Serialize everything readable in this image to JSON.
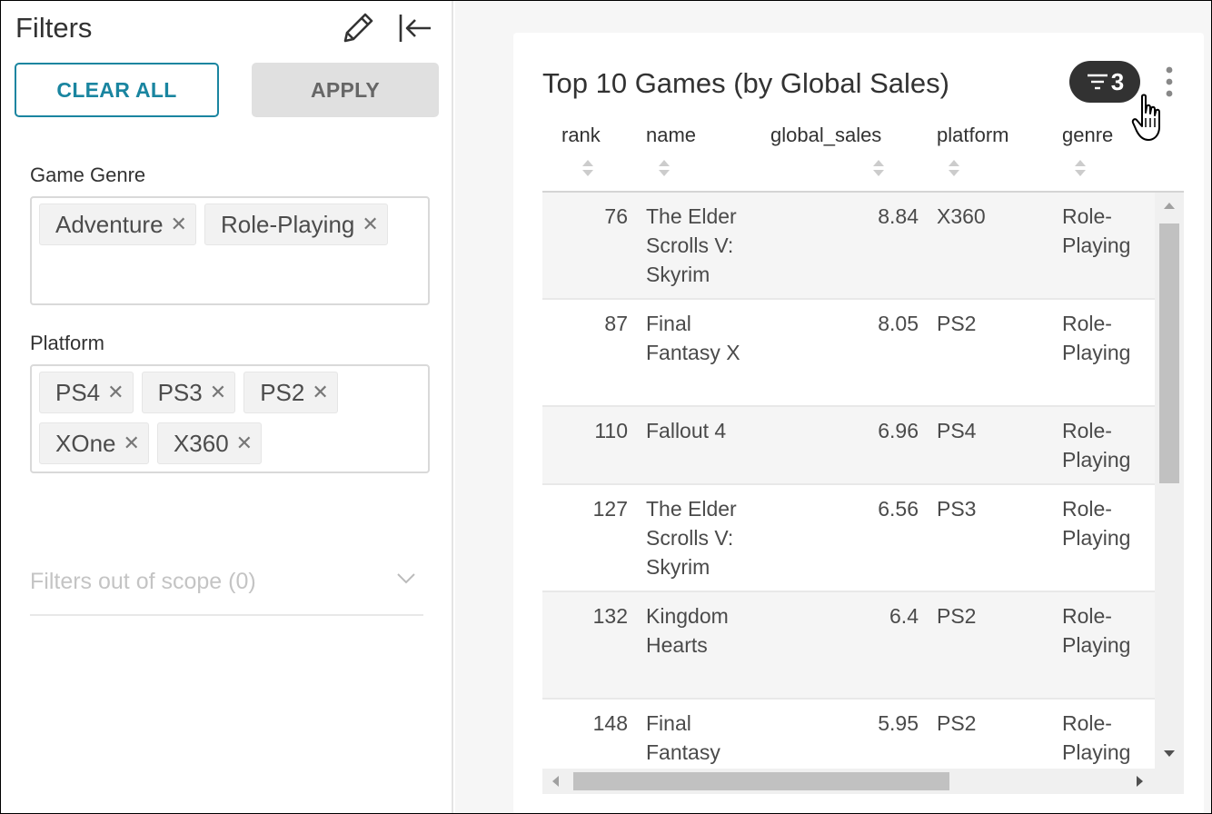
{
  "sidebar": {
    "title": "Filters",
    "clear_all_label": "CLEAR ALL",
    "apply_label": "APPLY",
    "filters": [
      {
        "label": "Game Genre",
        "values": [
          "Adventure",
          "Role-Playing"
        ]
      },
      {
        "label": "Platform",
        "values": [
          "PS4",
          "PS3",
          "PS2",
          "XOne",
          "X360"
        ]
      }
    ],
    "out_of_scope_label": "Filters out of scope (0)",
    "icons": {
      "edit": "pencil-icon",
      "collapse": "collapse-left-icon"
    }
  },
  "chart": {
    "title": "Top 10 Games (by Global Sales)",
    "filter_count": "3",
    "columns": [
      "rank",
      "name",
      "global_sales",
      "platform",
      "genre"
    ],
    "rows": [
      {
        "rank": "76",
        "name": "The Elder Scrolls V: Skyrim",
        "global_sales": "8.84",
        "platform": "X360",
        "genre": "Role-Playing"
      },
      {
        "rank": "87",
        "name": "Final Fantasy X",
        "global_sales": "8.05",
        "platform": "PS2",
        "genre": "Role-Playing"
      },
      {
        "rank": "110",
        "name": "Fallout 4",
        "global_sales": "6.96",
        "platform": "PS4",
        "genre": "Role-Playing"
      },
      {
        "rank": "127",
        "name": "The Elder Scrolls V: Skyrim",
        "global_sales": "6.56",
        "platform": "PS3",
        "genre": "Role-Playing"
      },
      {
        "rank": "132",
        "name": "Kingdom Hearts",
        "global_sales": "6.4",
        "platform": "PS2",
        "genre": "Role-Playing"
      },
      {
        "rank": "148",
        "name": "Final Fantasy",
        "global_sales": "5.95",
        "platform": "PS2",
        "genre": "Role-Playing"
      }
    ]
  },
  "colors": {
    "accent": "#1a85a0",
    "badge_bg": "#323232",
    "apply_bg": "#e0e0e0",
    "main_bg": "#f6f6f6"
  }
}
